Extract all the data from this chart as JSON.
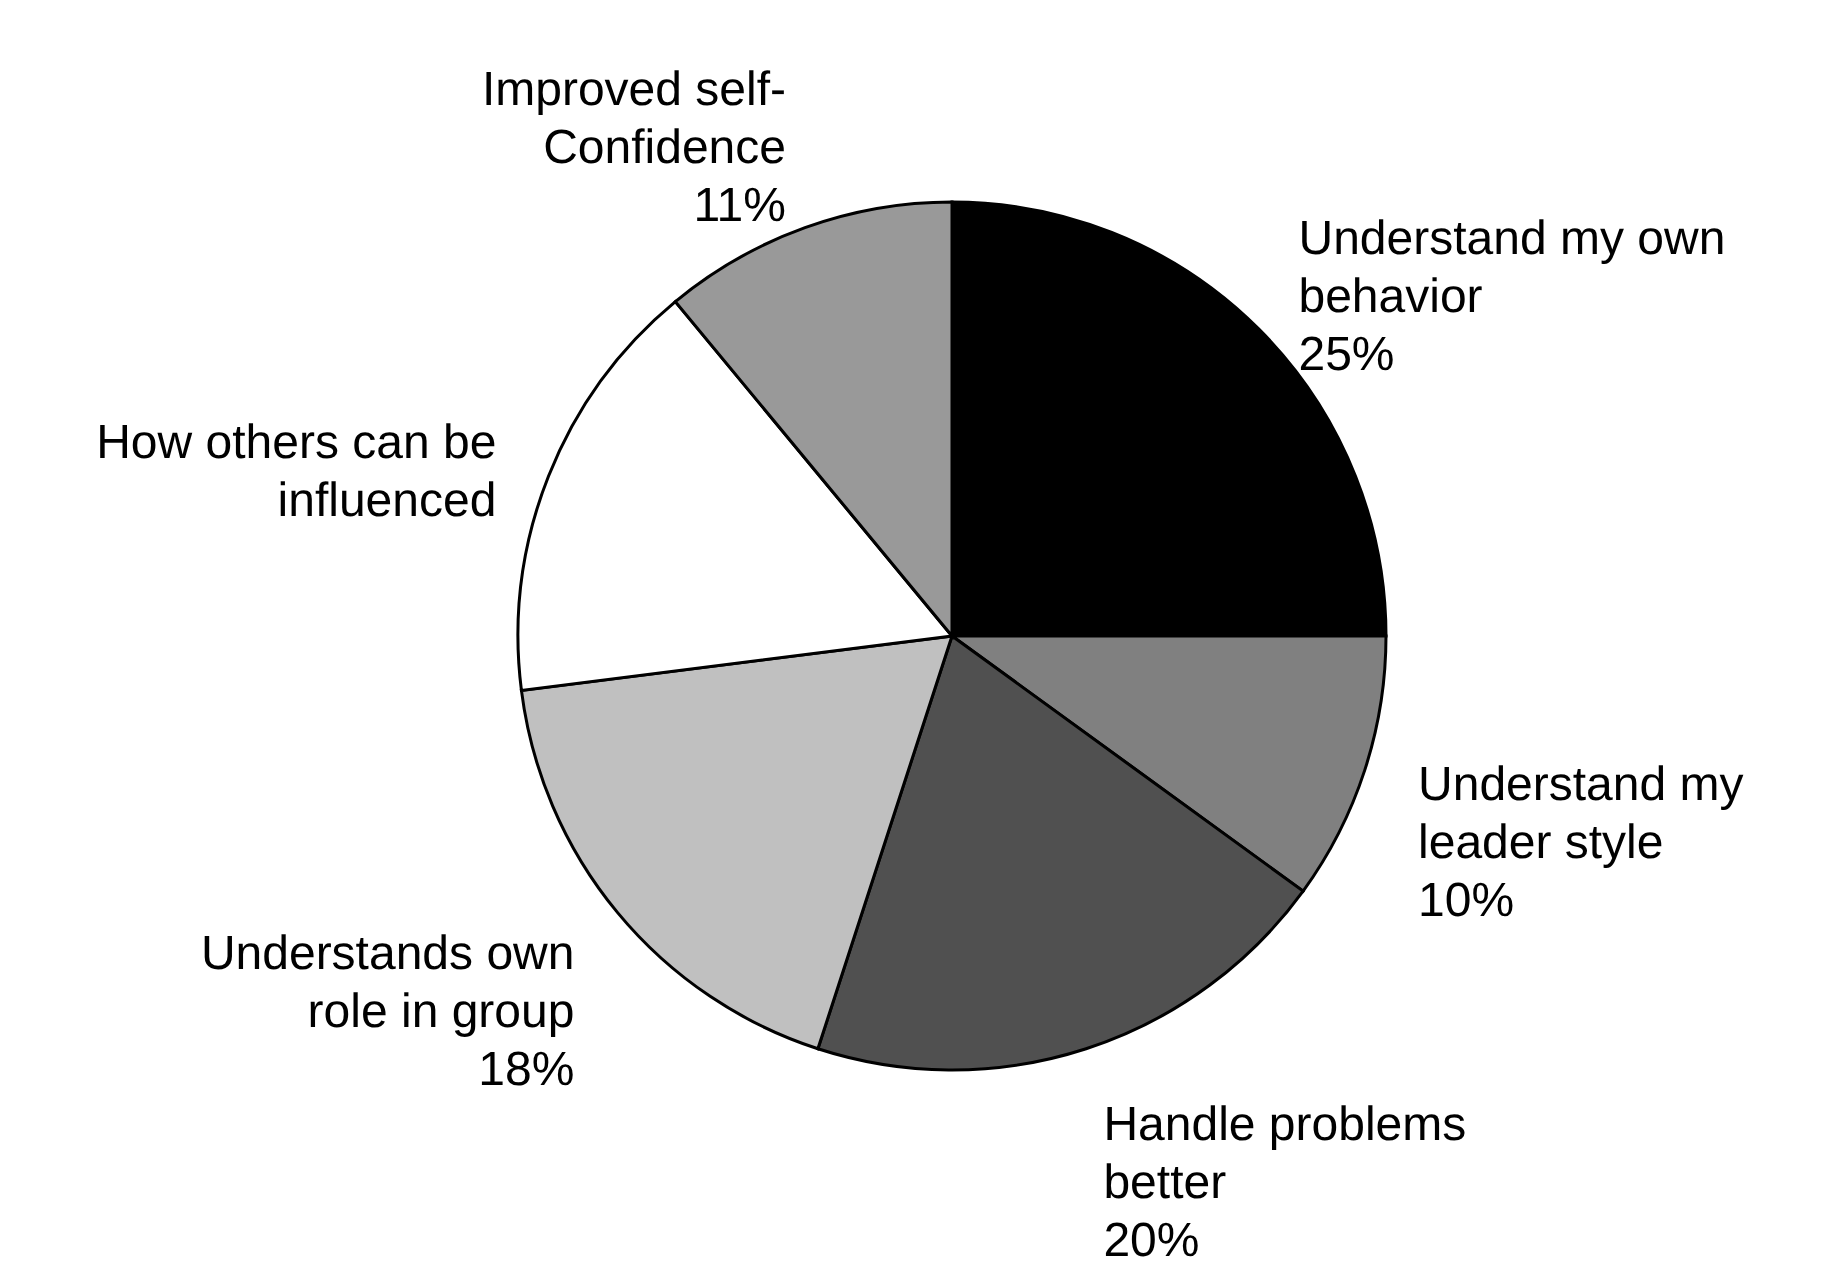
{
  "chart_data": {
    "type": "pie",
    "categories": [
      "Understand my own behavior",
      "Understand my leader style",
      "Handle problems better",
      "Understands own role in group",
      "How others can be influenced",
      "Improved self-Confidence"
    ],
    "values": [
      25,
      10,
      20,
      18,
      16,
      11
    ],
    "value_labels": [
      "25%",
      "10%",
      "20%",
      "18%",
      null,
      "11%"
    ],
    "colors": [
      "#000000",
      "#808080",
      "#505050",
      "#c0c0c0",
      "#ffffff",
      "#999999"
    ]
  }
}
